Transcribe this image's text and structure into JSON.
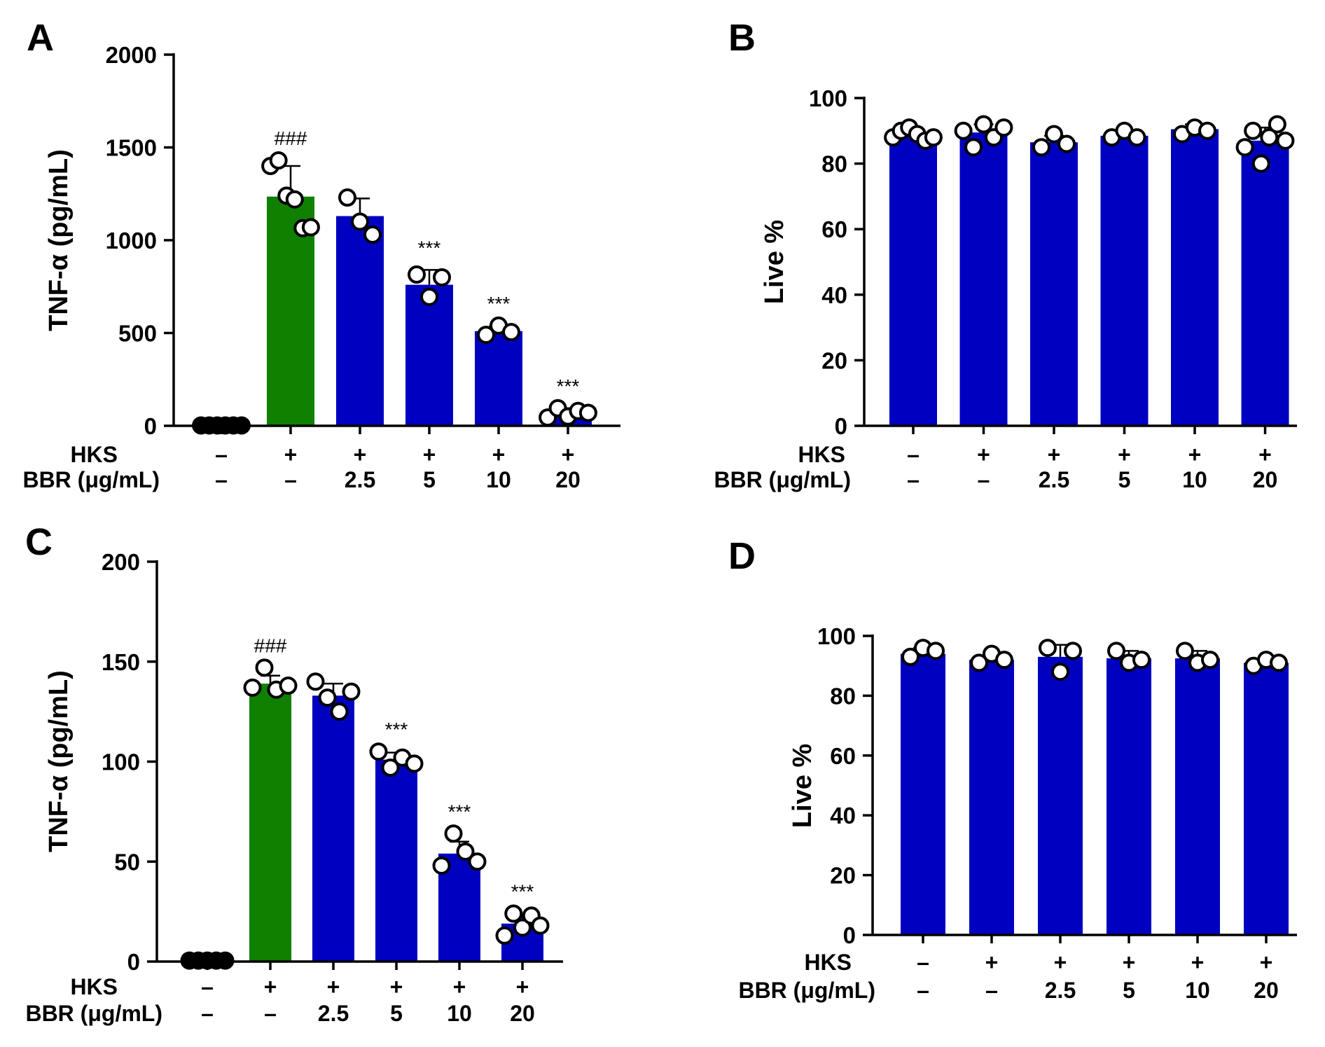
{
  "chart_data": [
    {
      "panel": "A",
      "type": "bar",
      "ylabel": "TNF-α (pg/mL)",
      "ylim": [
        0,
        2000
      ],
      "yticks": [
        0,
        500,
        1000,
        1500,
        2000
      ],
      "row_labels": [
        "HKS",
        "BBR (μg/mL)"
      ],
      "groups": [
        {
          "hks": "–",
          "bbr": "–",
          "value": 2,
          "sd": 3,
          "color": "#111111",
          "annotation": "",
          "points": [
            2,
            2,
            2,
            2,
            2,
            2
          ]
        },
        {
          "hks": "+",
          "bbr": "–",
          "value": 1235,
          "sd": 165,
          "color": "#0f8000",
          "annotation": "###",
          "points": [
            1400,
            1430,
            1240,
            1220,
            1065,
            1070
          ]
        },
        {
          "hks": "+",
          "bbr": "2.5",
          "value": 1130,
          "sd": 95,
          "color": "#0000c0",
          "annotation": "",
          "points": [
            1230,
            1100,
            1030
          ]
        },
        {
          "hks": "+",
          "bbr": "5",
          "value": 760,
          "sd": 80,
          "color": "#0000c0",
          "annotation": "***",
          "points": [
            815,
            695,
            800
          ]
        },
        {
          "hks": "+",
          "bbr": "10",
          "value": 510,
          "sd": 25,
          "color": "#0000c0",
          "annotation": "***",
          "points": [
            490,
            540,
            505
          ]
        },
        {
          "hks": "+",
          "bbr": "20",
          "value": 65,
          "sd": 30,
          "color": "#0000c0",
          "annotation": "***",
          "points": [
            45,
            95,
            50,
            80,
            70
          ]
        }
      ]
    },
    {
      "panel": "B",
      "type": "bar",
      "ylabel": "Live %",
      "ylim": [
        0,
        100
      ],
      "yticks": [
        0,
        20,
        40,
        60,
        80,
        100
      ],
      "row_labels": [
        "HKS",
        "BBR (μg/mL)"
      ],
      "groups": [
        {
          "hks": "–",
          "bbr": "–",
          "value": 89,
          "sd": 2,
          "color": "#0000c0",
          "annotation": "",
          "points": [
            88,
            90,
            91,
            89,
            87,
            88
          ]
        },
        {
          "hks": "+",
          "bbr": "–",
          "value": 89.5,
          "sd": 2.5,
          "color": "#0000c0",
          "annotation": "",
          "points": [
            90,
            85,
            92,
            88,
            91
          ]
        },
        {
          "hks": "+",
          "bbr": "2.5",
          "value": 86.5,
          "sd": 2,
          "color": "#0000c0",
          "annotation": "",
          "points": [
            85,
            89,
            86
          ]
        },
        {
          "hks": "+",
          "bbr": "5",
          "value": 88.5,
          "sd": 1.5,
          "color": "#0000c0",
          "annotation": "",
          "points": [
            88,
            90,
            88
          ]
        },
        {
          "hks": "+",
          "bbr": "10",
          "value": 90.5,
          "sd": 1.5,
          "color": "#0000c0",
          "annotation": "",
          "points": [
            89,
            91,
            90
          ]
        },
        {
          "hks": "+",
          "bbr": "20",
          "value": 87,
          "sd": 4,
          "color": "#0000c0",
          "annotation": "",
          "points": [
            85,
            90,
            80,
            88,
            92,
            87
          ]
        }
      ]
    },
    {
      "panel": "C",
      "type": "bar",
      "ylabel": "TNF-α (pg/mL)",
      "ylim": [
        0,
        200
      ],
      "yticks": [
        0,
        50,
        100,
        150,
        200
      ],
      "row_labels": [
        "HKS",
        "BBR (μg/mL)"
      ],
      "groups": [
        {
          "hks": "–",
          "bbr": "–",
          "value": 0.5,
          "sd": 0.5,
          "color": "#111111",
          "annotation": "",
          "points": [
            0.5,
            0.5,
            0.5,
            0.5,
            0.5
          ]
        },
        {
          "hks": "+",
          "bbr": "–",
          "value": 139,
          "sd": 4,
          "color": "#0f8000",
          "annotation": "###",
          "points": [
            137,
            147,
            136,
            138
          ]
        },
        {
          "hks": "+",
          "bbr": "2.5",
          "value": 133,
          "sd": 6,
          "color": "#0000c0",
          "annotation": "",
          "points": [
            140,
            132,
            125,
            135
          ]
        },
        {
          "hks": "+",
          "bbr": "5",
          "value": 101,
          "sd": 3.5,
          "color": "#0000c0",
          "annotation": "***",
          "points": [
            105,
            97,
            102,
            99
          ]
        },
        {
          "hks": "+",
          "bbr": "10",
          "value": 54,
          "sd": 6,
          "color": "#0000c0",
          "annotation": "***",
          "points": [
            48,
            64,
            55,
            50
          ]
        },
        {
          "hks": "+",
          "bbr": "20",
          "value": 19,
          "sd": 4,
          "color": "#0000c0",
          "annotation": "***",
          "points": [
            13,
            24,
            17,
            23,
            18
          ]
        }
      ]
    },
    {
      "panel": "D",
      "type": "bar",
      "ylabel": "Live %",
      "ylim": [
        0,
        100
      ],
      "yticks": [
        0,
        20,
        40,
        60,
        80,
        100
      ],
      "row_labels": [
        "HKS",
        "BBR (μg/mL)"
      ],
      "groups": [
        {
          "hks": "–",
          "bbr": "–",
          "value": 94,
          "sd": 2,
          "color": "#0000c0",
          "annotation": "",
          "points": [
            93,
            96,
            95
          ]
        },
        {
          "hks": "+",
          "bbr": "–",
          "value": 92,
          "sd": 1.5,
          "color": "#0000c0",
          "annotation": "",
          "points": [
            91,
            94,
            92
          ]
        },
        {
          "hks": "+",
          "bbr": "2.5",
          "value": 93,
          "sd": 4,
          "color": "#0000c0",
          "annotation": "",
          "points": [
            96,
            88,
            95
          ]
        },
        {
          "hks": "+",
          "bbr": "5",
          "value": 92.5,
          "sd": 2.5,
          "color": "#0000c0",
          "annotation": "",
          "points": [
            95,
            91,
            92
          ]
        },
        {
          "hks": "+",
          "bbr": "10",
          "value": 92.5,
          "sd": 2.5,
          "color": "#0000c0",
          "annotation": "",
          "points": [
            95,
            91,
            92
          ]
        },
        {
          "hks": "+",
          "bbr": "20",
          "value": 91,
          "sd": 1,
          "color": "#0000c0",
          "annotation": "",
          "points": [
            90,
            92,
            91
          ]
        }
      ]
    }
  ]
}
